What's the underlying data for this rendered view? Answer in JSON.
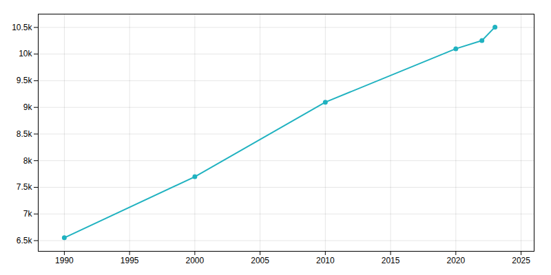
{
  "chart_data": {
    "type": "line",
    "x": [
      1990,
      2000,
      2010,
      2020,
      2022,
      2023
    ],
    "values": [
      6554,
      7698,
      9097,
      10100,
      10253,
      10506
    ],
    "color": "#20b2c0",
    "marker": "circle",
    "xlim": [
      1988.0,
      2026.0
    ],
    "ylim": [
      6300,
      10750
    ],
    "xticks": [
      1990,
      1995,
      2000,
      2005,
      2010,
      2015,
      2020,
      2025
    ],
    "yticks": [
      {
        "value": 6500,
        "label": "6.5k"
      },
      {
        "value": 7000,
        "label": "7k"
      },
      {
        "value": 7500,
        "label": "7.5k"
      },
      {
        "value": 8000,
        "label": "8k"
      },
      {
        "value": 8500,
        "label": "8.5k"
      },
      {
        "value": 9000,
        "label": "9k"
      },
      {
        "value": 9500,
        "label": "9.5k"
      },
      {
        "value": 10000,
        "label": "10k"
      },
      {
        "value": 10500,
        "label": "10.5k"
      }
    ],
    "grid": true
  }
}
